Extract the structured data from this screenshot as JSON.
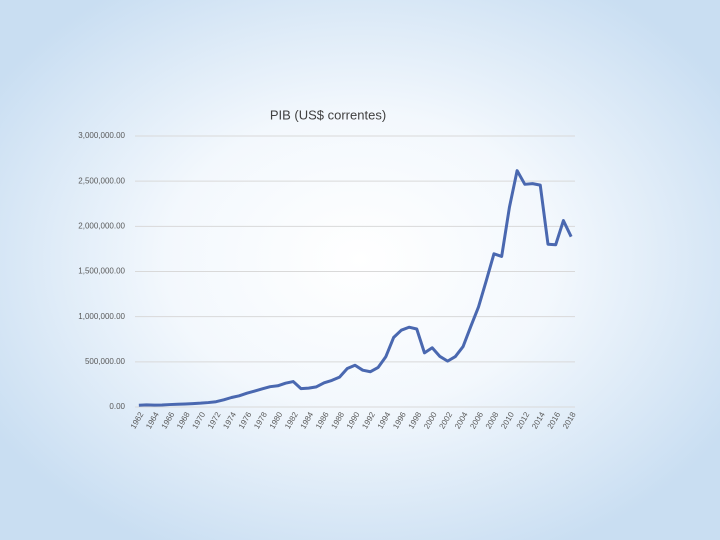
{
  "chart_data": {
    "type": "line",
    "title": "PIB (US$ correntes)",
    "categories": [
      "1962",
      null,
      "1964",
      null,
      "1966",
      null,
      "1968",
      null,
      "1970",
      null,
      "1972",
      null,
      "1974",
      null,
      "1976",
      null,
      "1978",
      null,
      "1980",
      null,
      "1982",
      null,
      "1984",
      null,
      "1986",
      null,
      "1988",
      null,
      "1990",
      null,
      "1992",
      null,
      "1994",
      null,
      "1996",
      null,
      "1998",
      null,
      "2000",
      null,
      "2002",
      null,
      "2004",
      null,
      "2006",
      null,
      "2008",
      null,
      "2010",
      null,
      "2012",
      null,
      "2014",
      null,
      "2016",
      null,
      "2018"
    ],
    "series": [
      {
        "name": "PIB (US$ correntes)",
        "color": "#4a68b0",
        "values": [
          19926,
          23021,
          21212,
          21790,
          27063,
          30591,
          33876,
          37459,
          42328,
          49204,
          58539,
          79279,
          105136,
          123709,
          152678,
          176171,
          200801,
          224969,
          235025,
          263561,
          281682,
          203305,
          209024,
          222942,
          268137,
          294084,
          330397,
          425595,
          461952,
          407338,
          390567,
          438300,
          558112,
          769305,
          850426,
          883199,
          863723,
          599389,
          655421,
          559373,
          507962,
          558320,
          669317,
          891633,
          1107640,
          1397084,
          1695825,
          1667020,
          2208872,
          2616202,
          2465189,
          2472807,
          2455994,
          1802214,
          1796275,
          2063515,
          1885483
        ]
      }
    ],
    "ylim": [
      0,
      3000000
    ],
    "yticks": [
      {
        "value": 0,
        "label": "0.00"
      },
      {
        "value": 500000,
        "label": "500,000.00"
      },
      {
        "value": 1000000,
        "label": "1,000,000.00"
      },
      {
        "value": 1500000,
        "label": "1,500,000.00"
      },
      {
        "value": 2000000,
        "label": "2,000,000.00"
      },
      {
        "value": 2500000,
        "label": "2,500,000.00"
      },
      {
        "value": 3000000,
        "label": "3,000,000.00"
      }
    ],
    "grid": true
  }
}
